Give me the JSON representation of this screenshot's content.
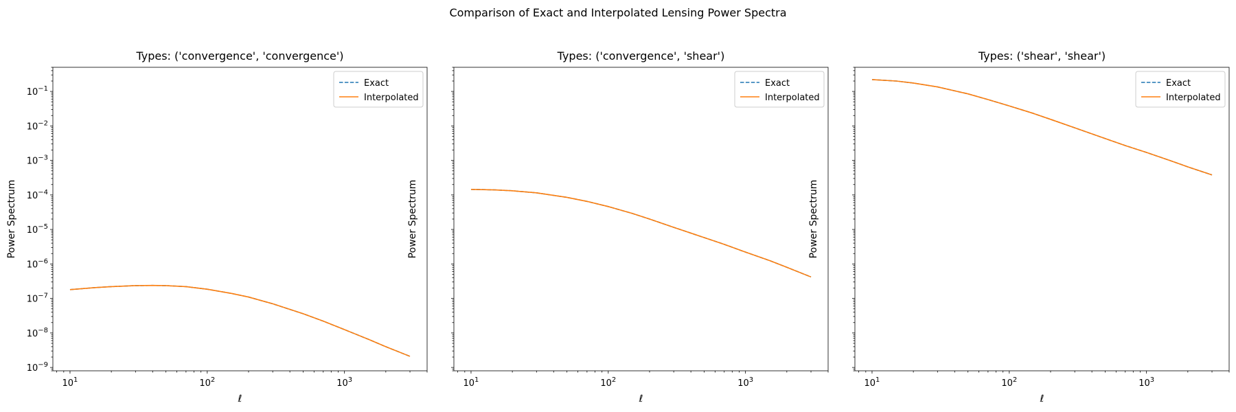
{
  "figure": {
    "suptitle": "Comparison of Exact and Interpolated Lensing Power Spectra"
  },
  "colors": {
    "exact": "#1f77b4",
    "interpolated": "#ff7f0e"
  },
  "chart_data": [
    {
      "type": "line",
      "title": "Types: ('convergence', 'convergence')",
      "xlabel": "ℓ",
      "ylabel": "Power Spectrum",
      "xscale": "log",
      "yscale": "log",
      "xlim": [
        7.5,
        4000
      ],
      "ylim": [
        8e-10,
        0.5
      ],
      "xticks": [
        {
          "value": 10,
          "base": "10",
          "exp": "1"
        },
        {
          "value": 100,
          "base": "10",
          "exp": "2"
        },
        {
          "value": 1000,
          "base": "10",
          "exp": "3"
        }
      ],
      "yticks": [
        {
          "value": 1e-09,
          "base": "10",
          "exp": "−9"
        },
        {
          "value": 1e-08,
          "base": "10",
          "exp": "−8"
        },
        {
          "value": 1e-07,
          "base": "10",
          "exp": "−7"
        },
        {
          "value": 1e-06,
          "base": "10",
          "exp": "−6"
        },
        {
          "value": 1e-05,
          "base": "10",
          "exp": "−5"
        },
        {
          "value": 0.0001,
          "base": "10",
          "exp": "−4"
        },
        {
          "value": 0.001,
          "base": "10",
          "exp": "−3"
        },
        {
          "value": 0.01,
          "base": "10",
          "exp": "−2"
        },
        {
          "value": 0.1,
          "base": "10",
          "exp": "−1"
        }
      ],
      "show_ytick_labels": true,
      "legend": {
        "position": "top-right",
        "entries": [
          "Exact",
          "Interpolated"
        ]
      },
      "series": [
        {
          "name": "Exact",
          "style": "dashed",
          "x": [
            10,
            15,
            20,
            30,
            40,
            50,
            70,
            100,
            150,
            200,
            300,
            500,
            700,
            1000,
            1500,
            2000,
            3000
          ],
          "y": [
            1.8e-07,
            2.05e-07,
            2.2e-07,
            2.35e-07,
            2.38e-07,
            2.35e-07,
            2.2e-07,
            1.85e-07,
            1.4e-07,
            1.1e-07,
            7e-08,
            3.6e-08,
            2.2e-08,
            1.25e-08,
            6.5e-09,
            4e-09,
            2.1e-09
          ]
        },
        {
          "name": "Interpolated",
          "style": "solid",
          "x": [
            10,
            15,
            20,
            30,
            40,
            50,
            70,
            100,
            150,
            200,
            300,
            500,
            700,
            1000,
            1500,
            2000,
            3000
          ],
          "y": [
            1.8e-07,
            2.05e-07,
            2.2e-07,
            2.35e-07,
            2.38e-07,
            2.35e-07,
            2.2e-07,
            1.85e-07,
            1.4e-07,
            1.1e-07,
            7e-08,
            3.6e-08,
            2.2e-08,
            1.25e-08,
            6.5e-09,
            4e-09,
            2.1e-09
          ]
        }
      ]
    },
    {
      "type": "line",
      "title": "Types: ('convergence', 'shear')",
      "xlabel": "ℓ",
      "ylabel": "Power Spectrum",
      "xscale": "log",
      "yscale": "log",
      "xlim": [
        7.5,
        4000
      ],
      "ylim": [
        8e-10,
        0.5
      ],
      "xticks": [
        {
          "value": 10,
          "base": "10",
          "exp": "1"
        },
        {
          "value": 100,
          "base": "10",
          "exp": "2"
        },
        {
          "value": 1000,
          "base": "10",
          "exp": "3"
        }
      ],
      "yticks": [
        {
          "value": 1e-09
        },
        {
          "value": 1e-08
        },
        {
          "value": 1e-07
        },
        {
          "value": 1e-06
        },
        {
          "value": 1e-05
        },
        {
          "value": 0.0001
        },
        {
          "value": 0.001
        },
        {
          "value": 0.01
        },
        {
          "value": 0.1
        }
      ],
      "show_ytick_labels": false,
      "legend": {
        "position": "top-right",
        "entries": [
          "Exact",
          "Interpolated"
        ]
      },
      "series": [
        {
          "name": "Exact",
          "style": "dashed",
          "x": [
            10,
            15,
            20,
            30,
            50,
            70,
            100,
            150,
            200,
            300,
            500,
            700,
            1000,
            1500,
            2000,
            3000
          ],
          "y": [
            0.000145,
            0.00014,
            0.000132,
            0.000115,
            8.5e-05,
            6.5e-05,
            4.6e-05,
            2.9e-05,
            2e-05,
            1.15e-05,
            5.8e-06,
            3.7e-06,
            2.2e-06,
            1.25e-06,
            8e-07,
            4.2e-07
          ]
        },
        {
          "name": "Interpolated",
          "style": "solid",
          "x": [
            10,
            15,
            20,
            30,
            50,
            70,
            100,
            150,
            200,
            300,
            500,
            700,
            1000,
            1500,
            2000,
            3000
          ],
          "y": [
            0.000145,
            0.00014,
            0.000132,
            0.000115,
            8.5e-05,
            6.5e-05,
            4.6e-05,
            2.9e-05,
            2e-05,
            1.15e-05,
            5.8e-06,
            3.7e-06,
            2.2e-06,
            1.25e-06,
            8e-07,
            4.2e-07
          ]
        }
      ]
    },
    {
      "type": "line",
      "title": "Types: ('shear', 'shear')",
      "xlabel": "ℓ",
      "ylabel": "Power Spectrum",
      "xscale": "log",
      "yscale": "log",
      "xlim": [
        7.5,
        4000
      ],
      "ylim": [
        8e-10,
        0.5
      ],
      "xticks": [
        {
          "value": 10,
          "base": "10",
          "exp": "1"
        },
        {
          "value": 100,
          "base": "10",
          "exp": "2"
        },
        {
          "value": 1000,
          "base": "10",
          "exp": "3"
        }
      ],
      "yticks": [
        {
          "value": 1e-09
        },
        {
          "value": 1e-08
        },
        {
          "value": 1e-07
        },
        {
          "value": 1e-06
        },
        {
          "value": 1e-05
        },
        {
          "value": 0.0001
        },
        {
          "value": 0.001
        },
        {
          "value": 0.01
        },
        {
          "value": 0.1
        }
      ],
      "show_ytick_labels": false,
      "legend": {
        "position": "top-right",
        "entries": [
          "Exact",
          "Interpolated"
        ]
      },
      "series": [
        {
          "name": "Exact",
          "style": "dashed",
          "x": [
            10,
            15,
            20,
            30,
            50,
            70,
            100,
            150,
            200,
            300,
            500,
            700,
            1000,
            1500,
            2000,
            3000
          ],
          "y": [
            0.22,
            0.2,
            0.175,
            0.135,
            0.085,
            0.058,
            0.038,
            0.023,
            0.0155,
            0.0088,
            0.0043,
            0.0027,
            0.0017,
            0.00098,
            0.00065,
            0.00038
          ]
        },
        {
          "name": "Interpolated",
          "style": "solid",
          "x": [
            10,
            15,
            20,
            30,
            50,
            70,
            100,
            150,
            200,
            300,
            500,
            700,
            1000,
            1500,
            2000,
            3000
          ],
          "y": [
            0.22,
            0.2,
            0.175,
            0.135,
            0.085,
            0.058,
            0.038,
            0.023,
            0.0155,
            0.0088,
            0.0043,
            0.0027,
            0.0017,
            0.00098,
            0.00065,
            0.00038
          ]
        }
      ]
    }
  ]
}
